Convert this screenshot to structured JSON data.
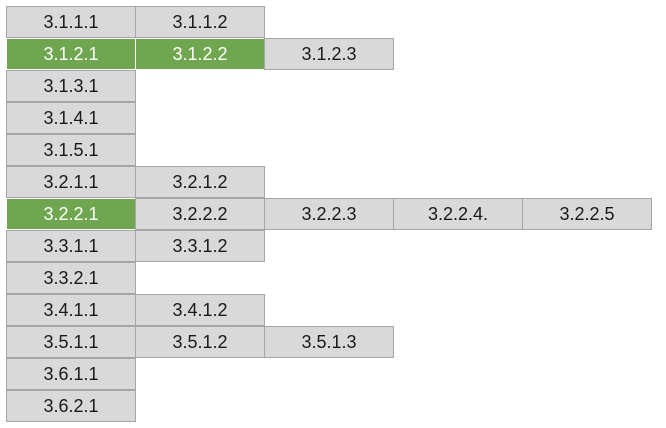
{
  "colors": {
    "cell_bg": "#d9d9d9",
    "cell_border": "#a6a6a6",
    "highlight_bg": "#70a650",
    "highlight_text": "#ffffff",
    "text": "#1a1a1a"
  },
  "rows": [
    {
      "cells": [
        {
          "label": "3.1.1.1",
          "highlighted": false
        },
        {
          "label": "3.1.1.2",
          "highlighted": false
        }
      ]
    },
    {
      "cells": [
        {
          "label": "3.1.2.1",
          "highlighted": true
        },
        {
          "label": "3.1.2.2",
          "highlighted": true
        },
        {
          "label": "3.1.2.3",
          "highlighted": false
        }
      ]
    },
    {
      "cells": [
        {
          "label": "3.1.3.1",
          "highlighted": false
        }
      ]
    },
    {
      "cells": [
        {
          "label": "3.1.4.1",
          "highlighted": false
        }
      ]
    },
    {
      "cells": [
        {
          "label": "3.1.5.1",
          "highlighted": false
        }
      ]
    },
    {
      "cells": [
        {
          "label": "3.2.1.1",
          "highlighted": false
        },
        {
          "label": "3.2.1.2",
          "highlighted": false
        }
      ]
    },
    {
      "cells": [
        {
          "label": "3.2.2.1",
          "highlighted": true
        },
        {
          "label": "3.2.2.2",
          "highlighted": false
        },
        {
          "label": "3.2.2.3",
          "highlighted": false
        },
        {
          "label": "3.2.2.4.",
          "highlighted": false
        },
        {
          "label": "3.2.2.5",
          "highlighted": false
        }
      ]
    },
    {
      "cells": [
        {
          "label": "3.3.1.1",
          "highlighted": false
        },
        {
          "label": "3.3.1.2",
          "highlighted": false
        }
      ]
    },
    {
      "cells": [
        {
          "label": "3.3.2.1",
          "highlighted": false
        }
      ]
    },
    {
      "cells": [
        {
          "label": "3.4.1.1",
          "highlighted": false
        },
        {
          "label": "3.4.1.2",
          "highlighted": false
        }
      ]
    },
    {
      "cells": [
        {
          "label": "3.5.1.1",
          "highlighted": false
        },
        {
          "label": "3.5.1.2",
          "highlighted": false
        },
        {
          "label": "3.5.1.3",
          "highlighted": false
        }
      ]
    },
    {
      "cells": [
        {
          "label": "3.6.1.1",
          "highlighted": false
        }
      ]
    },
    {
      "cells": [
        {
          "label": "3.6.2.1",
          "highlighted": false
        }
      ]
    }
  ]
}
